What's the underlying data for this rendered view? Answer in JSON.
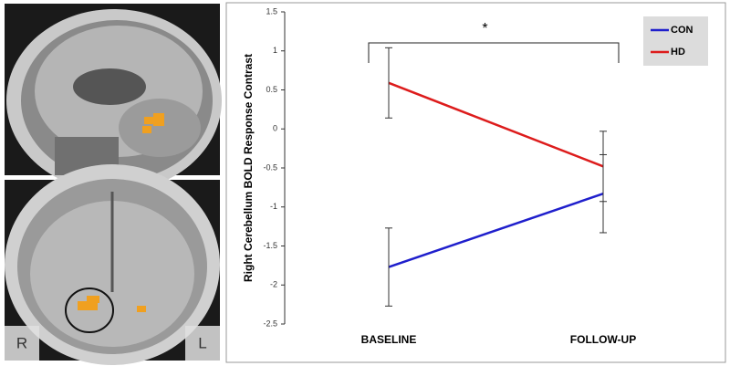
{
  "images": {
    "coronal_labels": [
      "R",
      "L"
    ]
  },
  "chart_data": {
    "type": "line",
    "ylabel": "Right Cerebellum BOLD Response Contrast",
    "categories": [
      "BASELINE",
      "FOLLOW-UP"
    ],
    "series": [
      {
        "name": "CON",
        "color": "#1f1fcc",
        "values": [
          -1.77,
          -0.83
        ],
        "errors": [
          0.5,
          0.5
        ]
      },
      {
        "name": "HD",
        "color": "#dd1c1c",
        "values": [
          0.59,
          -0.48
        ],
        "errors": [
          0.45,
          0.45
        ]
      }
    ],
    "ylim": [
      -2.5,
      1.5
    ],
    "yticks": [
      1.5,
      1,
      0.5,
      0,
      -0.5,
      -1,
      -1.5,
      -2,
      -2.5
    ],
    "annotation": "*",
    "legend": "upper right"
  }
}
